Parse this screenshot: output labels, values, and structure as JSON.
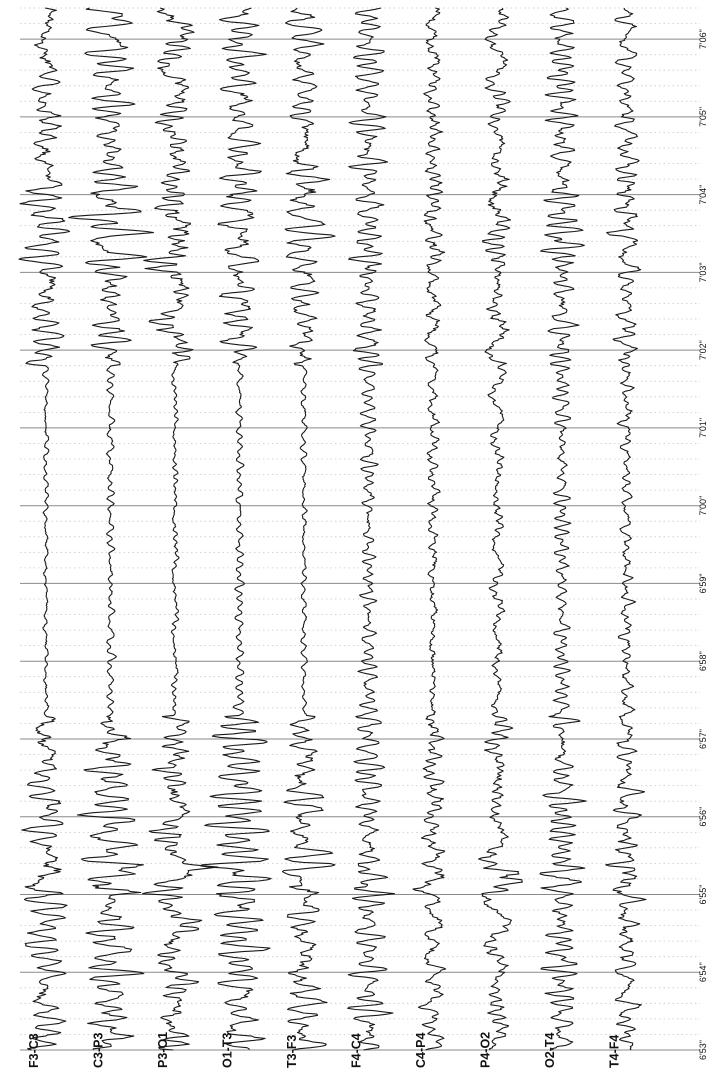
{
  "chart_data": {
    "type": "line",
    "description_units": "EEG bipolar montage, time axis in min'sec\"",
    "channels": [
      "F3-C3",
      "C3-P3",
      "P3-O1",
      "O1-T3",
      "T3-F3",
      "F4-C4",
      "C4-P4",
      "P4-O2",
      "O2-T4",
      "T4-F4"
    ],
    "time_ticks": [
      "6'53\"",
      "6'54\"",
      "6'55\"",
      "6'56\"",
      "6'57\"",
      "6'58\"",
      "6'59\"",
      "7'00\"",
      "7'01\"",
      "7'02\"",
      "7'03\"",
      "7'04\"",
      "7'05\"",
      "7'06\""
    ],
    "x_unit": "s",
    "xlim": [
      413,
      426.4
    ],
    "orientation": "rotated-90-ccw",
    "grid": {
      "major_per_second": true,
      "minor_dotted_per_fifth_second": true
    },
    "colors": {
      "trace": "#1a1a1a",
      "major_grid": "#8a8a8a",
      "minor_grid": "#c8c8c8",
      "label": "#111111"
    }
  }
}
